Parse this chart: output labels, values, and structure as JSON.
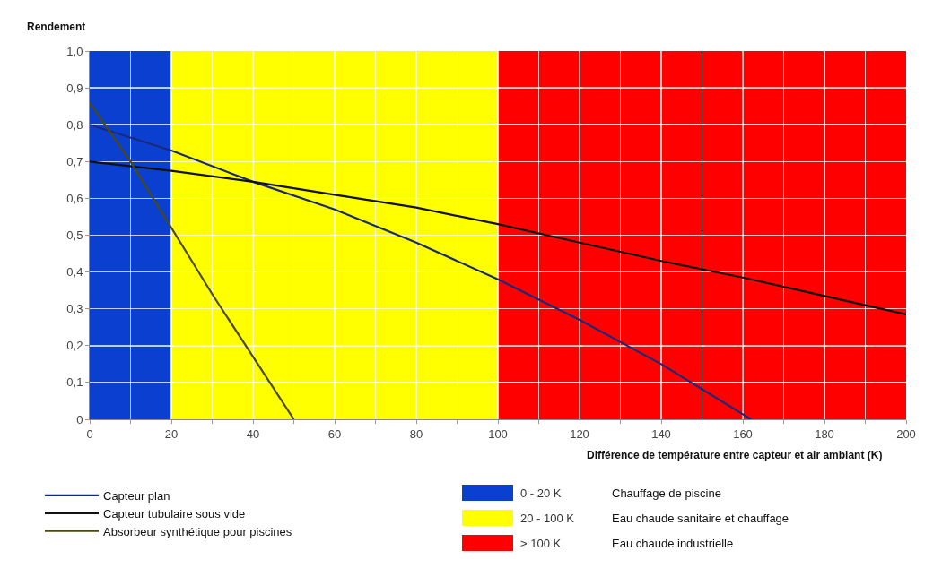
{
  "chart_data": {
    "type": "line",
    "xlabel": "Différence de température entre capteur et air ambiant (K)",
    "ylabel": "Rendement",
    "xlim": [
      0,
      200
    ],
    "xticks": [
      0,
      {
        "value": 10,
        "label": null
      },
      20,
      {
        "value": 30,
        "label": null
      },
      40,
      {
        "value": 50,
        "label": null
      },
      60,
      {
        "value": 70,
        "label": null
      },
      80,
      {
        "value": 90,
        "label": null
      },
      100,
      {
        "value": 110,
        "label": null
      },
      120,
      {
        "value": 130,
        "label": null
      },
      140,
      {
        "value": 150,
        "label": null
      },
      160,
      {
        "value": 170,
        "label": null
      },
      180,
      {
        "value": 190,
        "label": null
      },
      200
    ],
    "ylim": [
      0,
      1
    ],
    "yticks": [
      {
        "value": 0,
        "label": "0"
      },
      {
        "value": 0.1,
        "label": "0,1"
      },
      {
        "value": 0.2,
        "label": "0,2"
      },
      {
        "value": 0.3,
        "label": "0,3"
      },
      {
        "value": 0.4,
        "label": "0,4"
      },
      {
        "value": 0.5,
        "label": "0,5"
      },
      {
        "value": 0.6,
        "label": "0,6"
      },
      {
        "value": 0.7,
        "label": "0,7"
      },
      {
        "value": 0.8,
        "label": "0,8"
      },
      {
        "value": 0.9,
        "label": "0,9"
      },
      {
        "value": 1,
        "label": "1,0"
      }
    ],
    "grid": true,
    "legend": "bottom",
    "line_style": "solid",
    "marker": "none",
    "series": [
      {
        "name": "Capteur plan",
        "color": "#1a2a7a",
        "x": [
          0,
          20,
          40,
          60,
          80,
          100,
          120,
          140,
          162
        ],
        "values": [
          0.8,
          0.73,
          0.645,
          0.57,
          0.48,
          0.38,
          0.27,
          0.15,
          0
        ]
      },
      {
        "name": "Capteur tubulaire sous vide",
        "color": "#111111",
        "x": [
          0,
          20,
          40,
          60,
          80,
          100,
          120,
          140,
          160,
          180,
          200
        ],
        "values": [
          0.7,
          0.675,
          0.645,
          0.61,
          0.575,
          0.53,
          0.48,
          0.43,
          0.385,
          0.335,
          0.285
        ]
      },
      {
        "name": "Absorbeur synthétique pour piscines",
        "color": "#4a4a12",
        "x": [
          0,
          10,
          20,
          30,
          40,
          50
        ],
        "values": [
          0.86,
          0.7,
          0.52,
          0.34,
          0.17,
          0
        ]
      }
    ],
    "bands": [
      {
        "axis": "x",
        "from": 0,
        "to": 20,
        "label": "0 - 20 K",
        "color": "#0a3fd0"
      },
      {
        "axis": "x",
        "from": 20,
        "to": 100,
        "label": "20 - 100 K",
        "color": "#ffff00"
      },
      {
        "axis": "x",
        "from": 100,
        "to": 200,
        "label": "> 100 K",
        "color": "#ff0000"
      }
    ],
    "annotations": [
      "Chauffage de piscine",
      "Eau chaude sanitaire et chauffage",
      "Eau chaude industrielle"
    ]
  }
}
